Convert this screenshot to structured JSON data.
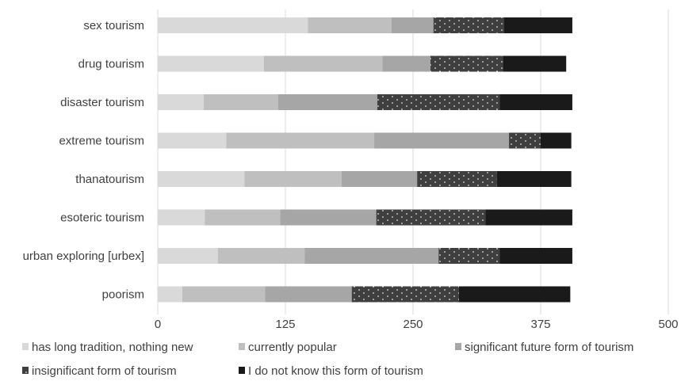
{
  "chart_data": {
    "type": "bar",
    "orientation": "horizontal",
    "stacked": true,
    "categories": [
      "sex tourism",
      "drug tourism",
      "disaster tourism",
      "extreme tourism",
      "thanatourism",
      "esoteric tourism",
      "urban exploring [urbex]",
      "poorism"
    ],
    "series": [
      {
        "name": "has long tradition, nothing new",
        "color": "#d9d9d9",
        "pattern": "none",
        "values": [
          147,
          104,
          45,
          67,
          85,
          46,
          59,
          24
        ]
      },
      {
        "name": "currently popular",
        "color": "#bfbfbf",
        "pattern": "none",
        "values": [
          82,
          116,
          73,
          145,
          95,
          74,
          85,
          81
        ]
      },
      {
        "name": "significant future form of tourism",
        "color": "#a6a6a6",
        "pattern": "none",
        "values": [
          41,
          47,
          97,
          132,
          74,
          94,
          131,
          85
        ]
      },
      {
        "name": "insignificant form of tourism",
        "color": "#3f3f3f",
        "pattern": "dots",
        "values": [
          69,
          71,
          120,
          31,
          78,
          107,
          60,
          105
        ]
      },
      {
        "name": "I do not know this form of tourism",
        "color": "#1a1a1a",
        "pattern": "none",
        "values": [
          67,
          62,
          71,
          30,
          73,
          85,
          71,
          109
        ]
      }
    ],
    "xlim": [
      0,
      500
    ],
    "xticks": [
      0,
      125,
      250,
      375,
      500
    ],
    "grid": "vertical",
    "legend_position": "bottom"
  }
}
